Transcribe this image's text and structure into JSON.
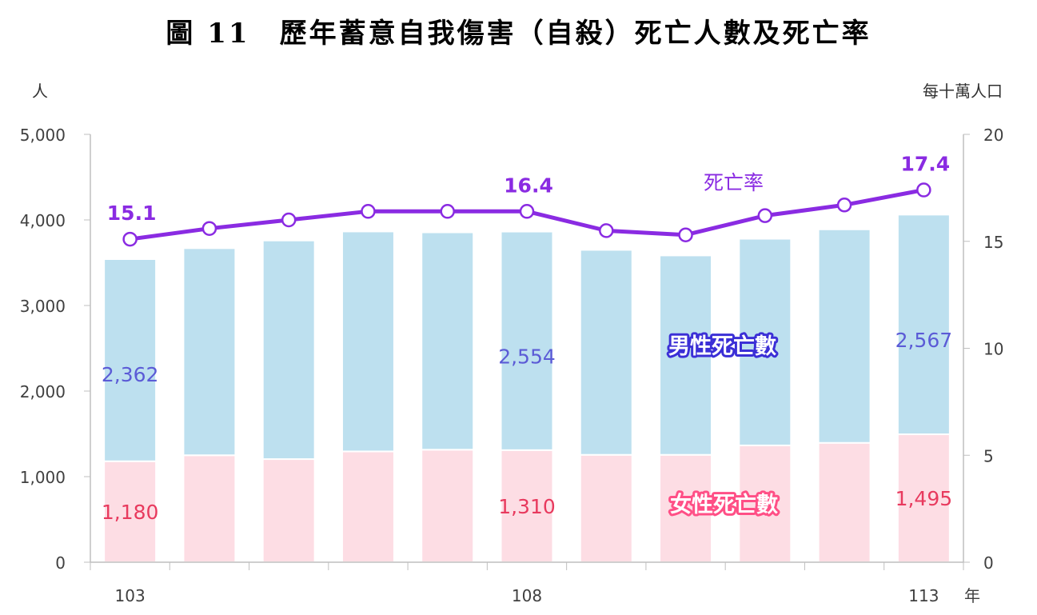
{
  "title": "圖 11　歷年蓄意自我傷害（自殺）死亡人數及死亡率",
  "chart_data": {
    "type": "bar",
    "stacked": true,
    "categories": [
      "103",
      "104",
      "105",
      "106",
      "107",
      "108",
      "109",
      "110",
      "111",
      "112",
      "113"
    ],
    "x_tick_labels": [
      "103",
      "108",
      "113"
    ],
    "x_unit": "年",
    "left_axis": {
      "unit": "人",
      "range": [
        0,
        5000
      ],
      "ticks": [
        "0",
        "1,000",
        "2,000",
        "3,000",
        "4,000",
        "5,000"
      ]
    },
    "right_axis": {
      "unit": "每十萬人口",
      "range": [
        0,
        20
      ],
      "ticks": [
        "0",
        "5",
        "10",
        "15",
        "20"
      ]
    },
    "series": [
      {
        "name": "女性死亡數",
        "axis": "left",
        "color": "#fddde4",
        "values": [
          1180,
          1250,
          1205,
          1295,
          1315,
          1310,
          1255,
          1255,
          1365,
          1395,
          1495
        ]
      },
      {
        "name": "男性死亡數",
        "axis": "left",
        "color": "#bde0ef",
        "values": [
          2362,
          2420,
          2555,
          2570,
          2540,
          2554,
          2395,
          2330,
          2415,
          2495,
          2567
        ]
      },
      {
        "name": "死亡率",
        "axis": "right",
        "type": "line",
        "color": "#8a2be2",
        "values": [
          15.1,
          15.6,
          16.0,
          16.4,
          16.4,
          16.4,
          15.5,
          15.3,
          16.2,
          16.7,
          17.4
        ]
      }
    ],
    "data_labels": {
      "male": [
        {
          "index": 0,
          "text": "2,362"
        },
        {
          "index": 5,
          "text": "2,554"
        },
        {
          "index": 10,
          "text": "2,567"
        }
      ],
      "female": [
        {
          "index": 0,
          "text": "1,180"
        },
        {
          "index": 5,
          "text": "1,310"
        },
        {
          "index": 10,
          "text": "1,495"
        }
      ],
      "rate": [
        {
          "index": 0,
          "text": "15.1"
        },
        {
          "index": 5,
          "text": "16.4"
        },
        {
          "index": 10,
          "text": "17.4"
        }
      ]
    },
    "legend": {
      "male": "男性死亡數",
      "female": "女性死亡數",
      "rate": "死亡率"
    }
  }
}
